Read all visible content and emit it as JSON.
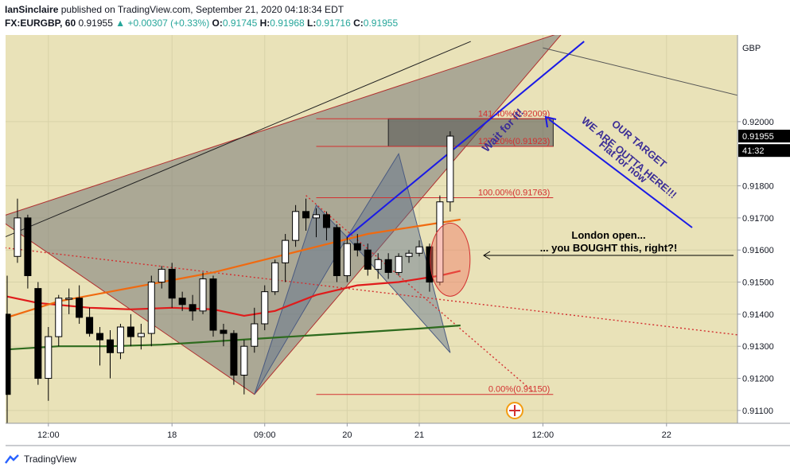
{
  "header": {
    "author": "IanSinclaire",
    "published": "published on TradingView.com, September 21, 2020 04:18:34 EDT",
    "symbol": "FX:EURGBP, 60",
    "price": "0.91955",
    "change_arrow": "▲",
    "change": "+0.00307 (+0.33%)",
    "o_label": "O:",
    "o_value": "0.91745",
    "h_label": "H:",
    "h_value": "0.91968",
    "l_label": "L:",
    "l_value": "0.91716",
    "c_label": "C:",
    "c_value": "0.91955"
  },
  "footer": {
    "brand": "TradingView"
  },
  "colors": {
    "background": "#e9e2b8",
    "bull": "#ffffff",
    "bear": "#000000",
    "ma_red": "#e01b1b",
    "ma_orange": "#f06a10",
    "ma_green": "#2e6b1e",
    "annotation_blue": "#1a1ae6",
    "annotation_text": "#3c2e96",
    "fib_red": "#d33030"
  },
  "chart_data": {
    "type": "candlestick",
    "currency": "GBP",
    "ylim": [
      0.9106,
      0.9227
    ],
    "y_ticks": [
      "0.92000",
      "0.91800",
      "0.91700",
      "0.91600",
      "0.91500",
      "0.91400",
      "0.91300",
      "0.91200",
      "0.91100"
    ],
    "x_ticks": [
      {
        "label": "12:00",
        "bar": 4
      },
      {
        "label": "18",
        "bar": 16
      },
      {
        "label": "09:00",
        "bar": 25
      },
      {
        "label": "20",
        "bar": 33
      },
      {
        "label": "21",
        "bar": 40
      },
      {
        "label": "12:00",
        "bar": 52
      },
      {
        "label": "22",
        "bar": 64
      }
    ],
    "price_labels": [
      {
        "text": "0.91955",
        "value": 0.91955,
        "style": "last"
      },
      {
        "text": "41:32",
        "value": 0.9191,
        "style": "timer"
      }
    ],
    "candles": [
      [
        0.914,
        0.9152,
        0.9106,
        0.9115
      ],
      [
        0.9158,
        0.9176,
        0.9156,
        0.917
      ],
      [
        0.917,
        0.9171,
        0.9148,
        0.9152
      ],
      [
        0.9148,
        0.915,
        0.9118,
        0.912
      ],
      [
        0.912,
        0.9136,
        0.9113,
        0.9133
      ],
      [
        0.9133,
        0.9146,
        0.913,
        0.9145
      ],
      [
        0.9145,
        0.9148,
        0.914,
        0.9145
      ],
      [
        0.9145,
        0.9149,
        0.9137,
        0.9139
      ],
      [
        0.9139,
        0.9142,
        0.9133,
        0.9134
      ],
      [
        0.9134,
        0.9136,
        0.9124,
        0.9132
      ],
      [
        0.9132,
        0.9135,
        0.912,
        0.9128
      ],
      [
        0.9128,
        0.9137,
        0.9126,
        0.9136
      ],
      [
        0.9136,
        0.914,
        0.913,
        0.9133
      ],
      [
        0.9133,
        0.9137,
        0.9129,
        0.9134
      ],
      [
        0.9134,
        0.9152,
        0.913,
        0.915
      ],
      [
        0.915,
        0.9155,
        0.9148,
        0.9154
      ],
      [
        0.9154,
        0.9156,
        0.9142,
        0.9145
      ],
      [
        0.9145,
        0.9147,
        0.9141,
        0.9143
      ],
      [
        0.9143,
        0.9146,
        0.9138,
        0.9141
      ],
      [
        0.9141,
        0.9153,
        0.914,
        0.9151
      ],
      [
        0.9151,
        0.9152,
        0.9133,
        0.9135
      ],
      [
        0.9135,
        0.9137,
        0.913,
        0.9134
      ],
      [
        0.9134,
        0.9135,
        0.9118,
        0.9121
      ],
      [
        0.9121,
        0.9132,
        0.9115,
        0.913
      ],
      [
        0.913,
        0.9142,
        0.9128,
        0.9137
      ],
      [
        0.9137,
        0.9149,
        0.9135,
        0.9147
      ],
      [
        0.9147,
        0.9157,
        0.9146,
        0.9156
      ],
      [
        0.9156,
        0.9165,
        0.915,
        0.9163
      ],
      [
        0.9163,
        0.9174,
        0.9161,
        0.9172
      ],
      [
        0.9172,
        0.9176,
        0.9166,
        0.917
      ],
      [
        0.917,
        0.9173,
        0.9164,
        0.9171
      ],
      [
        0.9171,
        0.9172,
        0.9163,
        0.9167
      ],
      [
        0.9167,
        0.9168,
        0.915,
        0.9152
      ],
      [
        0.9152,
        0.9164,
        0.915,
        0.9162
      ],
      [
        0.9162,
        0.9165,
        0.9158,
        0.916
      ],
      [
        0.916,
        0.9162,
        0.9152,
        0.9154
      ],
      [
        0.9154,
        0.9159,
        0.9151,
        0.9157
      ],
      [
        0.9157,
        0.9159,
        0.9151,
        0.9153
      ],
      [
        0.9153,
        0.9159,
        0.9152,
        0.9158
      ],
      [
        0.9158,
        0.916,
        0.9156,
        0.9159
      ],
      [
        0.9159,
        0.9163,
        0.9158,
        0.9161
      ],
      [
        0.9161,
        0.9162,
        0.9147,
        0.915
      ],
      [
        0.915,
        0.9177,
        0.9149,
        0.9175
      ],
      [
        0.9175,
        0.9197,
        0.9172,
        0.91955
      ]
    ],
    "moving_averages": [
      {
        "color": "#e01b1b",
        "points": [
          [
            0,
            0.91455
          ],
          [
            3,
            0.91435
          ],
          [
            8,
            0.9142
          ],
          [
            12,
            0.91415
          ],
          [
            16,
            0.9142
          ],
          [
            20,
            0.91415
          ],
          [
            23,
            0.91395
          ],
          [
            26,
            0.9141
          ],
          [
            30,
            0.9146
          ],
          [
            34,
            0.9149
          ],
          [
            38,
            0.915
          ],
          [
            42,
            0.9152
          ],
          [
            44,
            0.91535
          ]
        ]
      },
      {
        "color": "#f06a10",
        "points": [
          [
            0,
            0.9139
          ],
          [
            5,
            0.9144
          ],
          [
            10,
            0.9147
          ],
          [
            15,
            0.915
          ],
          [
            20,
            0.9153
          ],
          [
            25,
            0.9157
          ],
          [
            30,
            0.9161
          ],
          [
            35,
            0.9165
          ],
          [
            40,
            0.91675
          ],
          [
            44,
            0.91695
          ]
        ]
      },
      {
        "color": "#2e6b1e",
        "points": [
          [
            0,
            0.9129
          ],
          [
            5,
            0.913
          ],
          [
            10,
            0.913
          ],
          [
            15,
            0.91305
          ],
          [
            20,
            0.91315
          ],
          [
            25,
            0.91325
          ],
          [
            30,
            0.91335
          ],
          [
            35,
            0.91345
          ],
          [
            40,
            0.91355
          ],
          [
            44,
            0.91365
          ]
        ]
      }
    ],
    "pattern_shapes": [
      {
        "kind": "big_triangle",
        "points": [
          [
            -1,
            0.917
          ],
          [
            24,
            0.9115
          ],
          [
            54,
            0.9228
          ]
        ]
      },
      {
        "kind": "small_xabcd_1",
        "points": [
          [
            24,
            0.9115
          ],
          [
            30,
            0.9174
          ],
          [
            33,
            0.9164
          ]
        ]
      },
      {
        "kind": "small_xabcd_2",
        "points": [
          [
            33,
            0.9164
          ],
          [
            38,
            0.919
          ],
          [
            43,
            0.9128
          ]
        ]
      }
    ],
    "trendlines": [
      {
        "style": "black",
        "points": [
          [
            -1,
            0.9163
          ],
          [
            45,
            0.9225
          ]
        ]
      },
      {
        "style": "grey_top",
        "points": [
          [
            52,
            0.9223
          ],
          [
            75,
            0.9205
          ]
        ]
      },
      {
        "style": "red_dotted",
        "points": [
          [
            -1,
            0.9161
          ],
          [
            75,
            0.9132
          ]
        ]
      },
      {
        "style": "red_dotted2",
        "points": [
          [
            29,
            0.9177
          ],
          [
            51,
            0.9116
          ]
        ]
      },
      {
        "style": "blue_up",
        "points": [
          [
            33,
            0.9164
          ],
          [
            56,
            0.9225
          ]
        ]
      }
    ],
    "fib_levels": [
      {
        "label": "141.40%(0.92009)",
        "value": 0.92009
      },
      {
        "label": "127.20%(0.91923)",
        "value": 0.91923
      },
      {
        "label": "100.00%(0.91763)",
        "value": 0.91763
      },
      {
        "label": "0.00%(0.91150)",
        "value": 0.9115
      }
    ],
    "target_box": {
      "from_bar": 37,
      "to_bar": 53,
      "top": 0.92009,
      "bottom": 0.91923
    },
    "annotations": [
      {
        "text": "Wait for it!",
        "color": "#3c2e96"
      },
      {
        "text": "OUR TARGET",
        "color": "#3c2e96"
      },
      {
        "text": "WE ARE OUTTA HERE!!!",
        "color": "#3c2e96"
      },
      {
        "text": "Flat for now",
        "color": "#3c2e96"
      },
      {
        "text": "London open...",
        "color": "#000000"
      },
      {
        "text": "... you BOUGHT this, right?!",
        "color": "#000000"
      }
    ]
  }
}
